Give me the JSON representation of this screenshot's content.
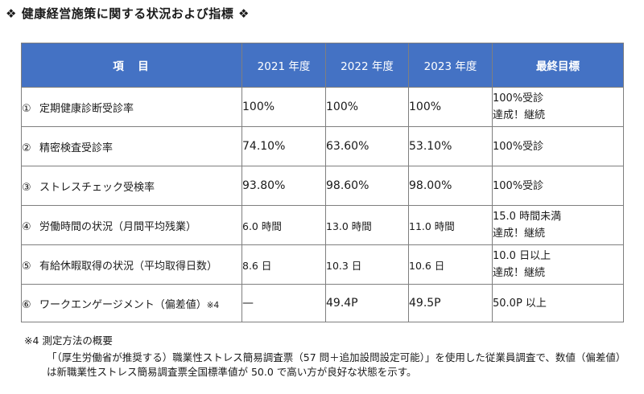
{
  "heading": {
    "diamond_left": "❖",
    "title": "健康経営施策に関する状況および指標",
    "diamond_right": "❖"
  },
  "table": {
    "headers": {
      "item": "項　目",
      "y2021": "2021 年度",
      "y2022": "2022 年度",
      "y2023": "2023 年度",
      "goal": "最終目標"
    },
    "rows": [
      {
        "num": "①",
        "label": "定期健康診断受診率",
        "note": "",
        "v2021": "100%",
        "v2022": "100%",
        "v2023": "100%",
        "goal_line1": "100%受診",
        "goal_line2": "達成！継続"
      },
      {
        "num": "②",
        "label": "精密検査受診率",
        "note": "",
        "v2021": "74.10%",
        "v2022": "63.60%",
        "v2023": "53.10%",
        "goal_line1": "100%受診",
        "goal_line2": ""
      },
      {
        "num": "③",
        "label": "ストレスチェック受検率",
        "note": "",
        "v2021": "93.80%",
        "v2022": "98.60%",
        "v2023": "98.00%",
        "goal_line1": "100%受診",
        "goal_line2": ""
      },
      {
        "num": "④",
        "label": "労働時間の状況（月間平均残業）",
        "note": "",
        "v2021": "6.0 時間",
        "v2022": "13.0 時間",
        "v2023": "11.0 時間",
        "goal_line1": "15.0 時間未満",
        "goal_line2": "達成！継続"
      },
      {
        "num": "⑤",
        "label": "有給休暇取得の状況（平均取得日数）",
        "note": "",
        "v2021": "8.6 日",
        "v2022": "10.3 日",
        "v2023": "10.6 日",
        "goal_line1": "10.0 日以上",
        "goal_line2": "達成！継続"
      },
      {
        "num": "⑥",
        "label": "ワークエンゲージメント（偏差値）",
        "note": "※4",
        "v2021": "—",
        "v2022": "49.4P",
        "v2023": "49.5P",
        "goal_line1": "50.0P 以上",
        "goal_line2": ""
      }
    ]
  },
  "footnote": {
    "title": "※4  測定方法の概要",
    "line1": "「（厚生労働省が推奨する）職業性ストレス簡易調査票（57 問＋追加設問設定可能）」を使用した従業員調査で、数値（偏差値）",
    "line2": "は新職業性ストレス簡易調査票全国標準値が 50.0 で高い方が良好な状態を示す。"
  }
}
